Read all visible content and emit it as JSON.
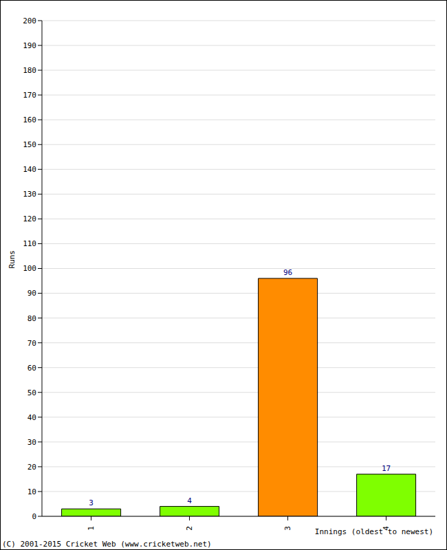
{
  "chart_data": {
    "type": "bar",
    "categories": [
      "1",
      "2",
      "3",
      "4"
    ],
    "values": [
      3,
      4,
      96,
      17
    ],
    "colors": [
      "#7fff00",
      "#7fff00",
      "#ff8c00",
      "#7fff00"
    ],
    "ylim": [
      0,
      200
    ],
    "yticks": [
      0,
      10,
      20,
      30,
      40,
      50,
      60,
      70,
      80,
      90,
      100,
      110,
      120,
      130,
      140,
      150,
      160,
      170,
      180,
      190,
      200
    ],
    "grid": true,
    "data_labels": true,
    "y_label": "Runs",
    "x_label": "Innings (oldest to newest)",
    "annotations": [
      "(C) 2001-2015 Cricket Web (www.cricketweb.net)"
    ]
  }
}
